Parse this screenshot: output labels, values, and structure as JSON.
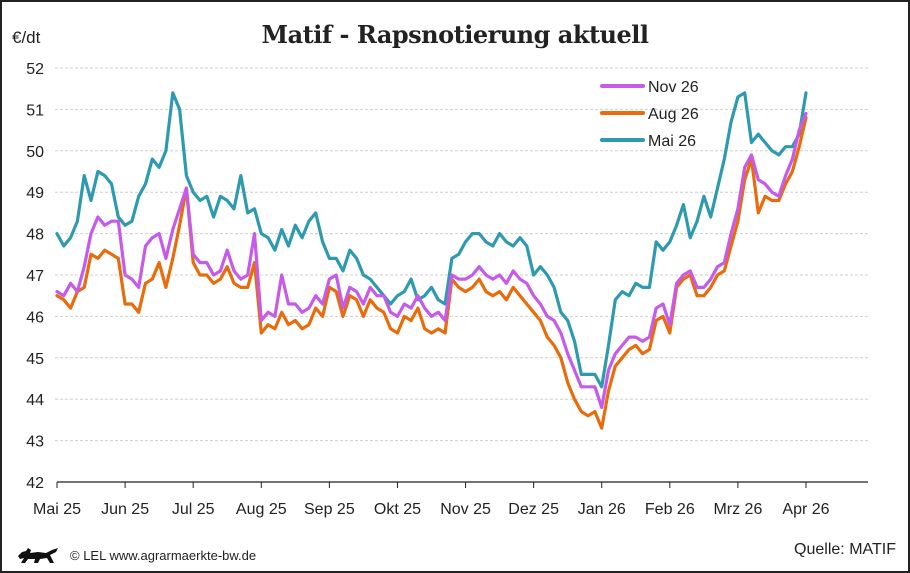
{
  "chart_data": {
    "type": "line",
    "title": "Matif - Rapsnotierung aktuell",
    "ylabel": "€/dt",
    "xlabel": "",
    "ylim": [
      42,
      52
    ],
    "yticks": [
      "42",
      "43",
      "44",
      "45",
      "46",
      "47",
      "48",
      "49",
      "50",
      "51",
      "52"
    ],
    "xticks": [
      "Mai 25",
      "Jun 25",
      "Jul 25",
      "Aug 25",
      "Sep 25",
      "Okt 25",
      "Nov 25",
      "Dez 25",
      "Jan 26",
      "Feb 26",
      "Mrz 26",
      "Apr 26"
    ],
    "grid": true,
    "legend_position": "top-right",
    "x_unit": "months since Mai 25",
    "series": [
      {
        "name": "Nov 26",
        "color": "#c55be8",
        "x": [
          0,
          0.1,
          0.2,
          0.3,
          0.4,
          0.5,
          0.6,
          0.7,
          0.8,
          0.9,
          1.0,
          1.1,
          1.2,
          1.3,
          1.4,
          1.5,
          1.6,
          1.7,
          1.8,
          1.9,
          2.0,
          2.1,
          2.2,
          2.3,
          2.4,
          2.5,
          2.6,
          2.7,
          2.8,
          2.9,
          3.0,
          3.1,
          3.2,
          3.3,
          3.4,
          3.5,
          3.6,
          3.7,
          3.8,
          3.9,
          4.0,
          4.1,
          4.2,
          4.3,
          4.4,
          4.5,
          4.6,
          4.7,
          4.8,
          4.9,
          5.0,
          5.1,
          5.2,
          5.3,
          5.4,
          5.5,
          5.6,
          5.7,
          5.8,
          5.9,
          6.0,
          6.1,
          6.2,
          6.3,
          6.4,
          6.5,
          6.6,
          6.7,
          6.8,
          6.9,
          7.0,
          7.1,
          7.2,
          7.3,
          7.4,
          7.5,
          7.6,
          7.7,
          7.8,
          7.9,
          8.0,
          8.1,
          8.2,
          8.3,
          8.4,
          8.5,
          8.6,
          8.7,
          8.8,
          8.9,
          9.0,
          9.1,
          9.2,
          9.3,
          9.4,
          9.5,
          9.6,
          9.7,
          9.8,
          9.9,
          10.0,
          10.1,
          10.2,
          10.3,
          10.4,
          10.5,
          10.6,
          10.7,
          10.8,
          10.9,
          11.0
        ],
        "y": [
          46.6,
          46.5,
          46.8,
          46.6,
          47.2,
          48.0,
          48.4,
          48.2,
          48.3,
          48.3,
          47.0,
          46.9,
          46.7,
          47.7,
          47.9,
          48.0,
          47.4,
          48.1,
          48.6,
          49.1,
          47.5,
          47.3,
          47.3,
          47.0,
          47.1,
          47.6,
          47.1,
          46.9,
          47.0,
          48.0,
          45.9,
          46.1,
          46.0,
          47.0,
          46.3,
          46.3,
          46.1,
          46.2,
          46.5,
          46.3,
          46.9,
          47.0,
          46.2,
          46.7,
          46.6,
          46.3,
          46.7,
          46.5,
          46.5,
          46.1,
          46.0,
          46.3,
          46.2,
          46.5,
          46.2,
          46.0,
          46.1,
          45.9,
          47.0,
          46.9,
          46.9,
          47.0,
          47.2,
          47.0,
          46.9,
          47.0,
          46.8,
          47.1,
          46.9,
          46.8,
          46.5,
          46.3,
          46.0,
          45.9,
          45.6,
          45.1,
          44.7,
          44.3,
          44.3,
          44.3,
          43.8,
          44.7,
          45.1,
          45.3,
          45.5,
          45.5,
          45.4,
          45.5,
          46.2,
          46.3,
          45.8,
          46.8,
          47.0,
          47.1,
          46.7,
          46.7,
          46.9,
          47.2,
          47.3,
          48.0,
          48.6,
          49.6,
          49.9,
          49.3,
          49.2,
          49.0,
          48.9,
          49.4,
          49.8,
          50.5,
          50.9
        ]
      },
      {
        "name": "Aug 26",
        "color": "#e86b0c",
        "x": [
          0,
          0.1,
          0.2,
          0.3,
          0.4,
          0.5,
          0.6,
          0.7,
          0.8,
          0.9,
          1.0,
          1.1,
          1.2,
          1.3,
          1.4,
          1.5,
          1.6,
          1.7,
          1.8,
          1.9,
          2.0,
          2.1,
          2.2,
          2.3,
          2.4,
          2.5,
          2.6,
          2.7,
          2.8,
          2.9,
          3.0,
          3.1,
          3.2,
          3.3,
          3.4,
          3.5,
          3.6,
          3.7,
          3.8,
          3.9,
          4.0,
          4.1,
          4.2,
          4.3,
          4.4,
          4.5,
          4.6,
          4.7,
          4.8,
          4.9,
          5.0,
          5.1,
          5.2,
          5.3,
          5.4,
          5.5,
          5.6,
          5.7,
          5.8,
          5.9,
          6.0,
          6.1,
          6.2,
          6.3,
          6.4,
          6.5,
          6.6,
          6.7,
          6.8,
          6.9,
          7.0,
          7.1,
          7.2,
          7.3,
          7.4,
          7.5,
          7.6,
          7.7,
          7.8,
          7.9,
          8.0,
          8.1,
          8.2,
          8.3,
          8.4,
          8.5,
          8.6,
          8.7,
          8.8,
          8.9,
          9.0,
          9.1,
          9.2,
          9.3,
          9.4,
          9.5,
          9.6,
          9.7,
          9.8,
          9.9,
          10.0,
          10.1,
          10.2,
          10.3,
          10.4,
          10.5,
          10.6,
          10.7,
          10.8,
          10.9,
          11.0
        ],
        "y": [
          46.5,
          46.4,
          46.2,
          46.6,
          46.7,
          47.5,
          47.4,
          47.6,
          47.5,
          47.4,
          46.3,
          46.3,
          46.1,
          46.8,
          46.9,
          47.3,
          46.7,
          47.4,
          48.2,
          49.1,
          47.3,
          47.0,
          47.0,
          46.8,
          46.9,
          47.2,
          46.8,
          46.7,
          46.7,
          47.3,
          45.6,
          45.8,
          45.7,
          46.1,
          45.8,
          45.9,
          45.7,
          45.8,
          46.2,
          46.0,
          46.7,
          46.6,
          46.0,
          46.5,
          46.4,
          46.0,
          46.4,
          46.2,
          46.1,
          45.7,
          45.6,
          46.0,
          45.9,
          46.2,
          45.7,
          45.6,
          45.7,
          45.6,
          46.9,
          46.7,
          46.6,
          46.7,
          46.9,
          46.6,
          46.5,
          46.6,
          46.4,
          46.7,
          46.5,
          46.3,
          46.1,
          45.9,
          45.5,
          45.3,
          45.0,
          44.4,
          44.0,
          43.7,
          43.6,
          43.7,
          43.3,
          44.2,
          44.8,
          45.0,
          45.2,
          45.3,
          45.1,
          45.2,
          45.9,
          46.0,
          45.6,
          46.7,
          46.9,
          47.0,
          46.5,
          46.5,
          46.7,
          47.0,
          47.1,
          47.7,
          48.3,
          49.3,
          49.8,
          48.5,
          48.9,
          48.8,
          48.8,
          49.2,
          49.5,
          50.1,
          50.8
        ]
      },
      {
        "name": "Mai 26",
        "color": "#2e9ab0",
        "x": [
          0,
          0.1,
          0.2,
          0.3,
          0.4,
          0.5,
          0.6,
          0.7,
          0.8,
          0.9,
          1.0,
          1.1,
          1.2,
          1.3,
          1.4,
          1.5,
          1.6,
          1.7,
          1.8,
          1.9,
          2.0,
          2.1,
          2.2,
          2.3,
          2.4,
          2.5,
          2.6,
          2.7,
          2.8,
          2.9,
          3.0,
          3.1,
          3.2,
          3.3,
          3.4,
          3.5,
          3.6,
          3.7,
          3.8,
          3.9,
          4.0,
          4.1,
          4.2,
          4.3,
          4.4,
          4.5,
          4.6,
          4.7,
          4.8,
          4.9,
          5.0,
          5.1,
          5.2,
          5.3,
          5.4,
          5.5,
          5.6,
          5.7,
          5.8,
          5.9,
          6.0,
          6.1,
          6.2,
          6.3,
          6.4,
          6.5,
          6.6,
          6.7,
          6.8,
          6.9,
          7.0,
          7.1,
          7.2,
          7.3,
          7.4,
          7.5,
          7.6,
          7.7,
          7.8,
          7.9,
          8.0,
          8.1,
          8.2,
          8.3,
          8.4,
          8.5,
          8.6,
          8.7,
          8.8,
          8.9,
          9.0,
          9.1,
          9.2,
          9.3,
          9.4,
          9.5,
          9.6,
          9.7,
          9.8,
          9.9,
          10.0,
          10.1,
          10.2,
          10.3,
          10.4,
          10.5,
          10.6,
          10.7,
          10.8,
          10.9,
          11.0
        ],
        "y": [
          48.0,
          47.7,
          47.9,
          48.3,
          49.4,
          48.8,
          49.5,
          49.4,
          49.2,
          48.4,
          48.2,
          48.3,
          48.9,
          49.2,
          49.8,
          49.6,
          50.0,
          51.4,
          51.0,
          49.4,
          49.0,
          48.8,
          48.9,
          48.4,
          48.9,
          48.8,
          48.6,
          49.4,
          48.5,
          48.6,
          48.0,
          47.9,
          47.6,
          48.1,
          47.7,
          48.2,
          47.9,
          48.3,
          48.5,
          47.8,
          47.4,
          47.4,
          47.1,
          47.6,
          47.4,
          47.0,
          46.9,
          46.7,
          46.5,
          46.3,
          46.5,
          46.6,
          46.9,
          46.4,
          46.5,
          46.7,
          46.4,
          46.3,
          47.4,
          47.5,
          47.8,
          48.0,
          48.0,
          47.8,
          47.7,
          48.0,
          47.8,
          47.7,
          47.9,
          47.7,
          47.0,
          47.2,
          47.0,
          46.7,
          46.1,
          45.9,
          45.4,
          44.6,
          44.6,
          44.6,
          44.3,
          45.3,
          46.4,
          46.6,
          46.5,
          46.8,
          46.7,
          46.7,
          47.8,
          47.6,
          47.8,
          48.2,
          48.7,
          47.9,
          48.3,
          48.9,
          48.4,
          49.1,
          49.8,
          50.7,
          51.3,
          51.4,
          50.2,
          50.4,
          50.2,
          50.0,
          49.9,
          50.1,
          50.1,
          50.4,
          51.4
        ]
      }
    ]
  },
  "header": {
    "unit_label": "€/dt",
    "title": "Matif - Rapsnotierung aktuell"
  },
  "footer": {
    "copyright": "© LEL www.agrarmaerkte-bw.de",
    "source": "Quelle: MATIF",
    "logo_icon": "lion-logo-icon"
  }
}
